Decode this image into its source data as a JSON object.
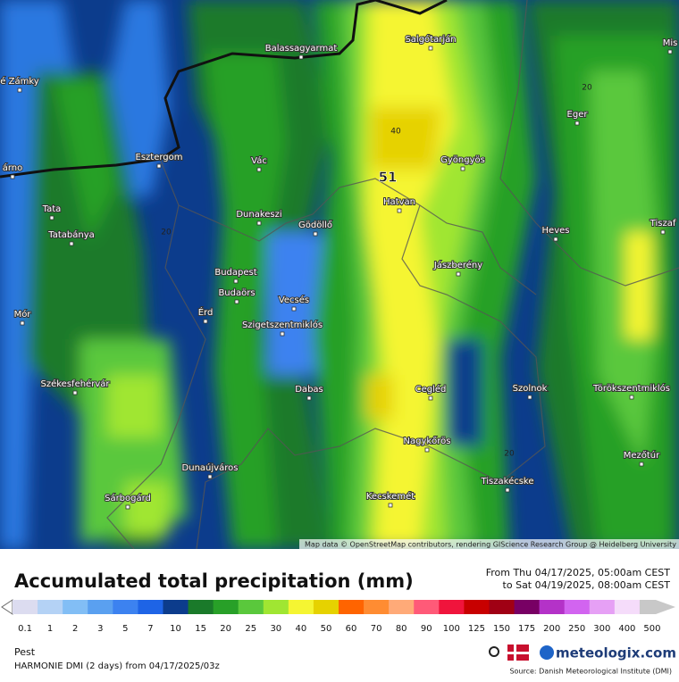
{
  "map": {
    "places": [
      "Balassagyarmat",
      "Salgótarján",
      "é Zámky",
      "Mis",
      "Eger",
      "Esztergom",
      "Vác",
      "Gyöngyös",
      "árno",
      "Tata",
      "Dunakeszi",
      "Gödöllő",
      "Hatvan",
      "Heves",
      "Tiszaf",
      "Tatabánya",
      "Jászberény",
      "Budapest",
      "Budaörs",
      "Vecsés",
      "Mór",
      "Érd",
      "Szigetszentmiklós",
      "Székesfehérvár",
      "Dabas",
      "Cegléd",
      "Szolnok",
      "Törökszentmiklós",
      "Nagykőrös",
      "Dunaújváros",
      "Mezőtúr",
      "Sárbogárd",
      "Tiszakécske",
      "Kecskemét"
    ],
    "contour_labels": [
      20,
      40,
      20,
      20
    ],
    "max_value": 51,
    "attribution": "Map data © OpenStreetMap contributors, rendering GIScience Research Group @ Heidelberg University"
  },
  "legend": {
    "title": "Accumulated total precipitation (mm)",
    "period_from": "From Thu 04/17/2025, 05:00am CEST",
    "period_to": "to Sat 04/19/2025, 08:00am CEST",
    "levels": [
      {
        "value": 0.1,
        "color": "#dcdcf0"
      },
      {
        "value": 1,
        "color": "#b4d2f5"
      },
      {
        "value": 2,
        "color": "#82bef5"
      },
      {
        "value": 3,
        "color": "#5aa0f0"
      },
      {
        "value": 5,
        "color": "#3c82f0"
      },
      {
        "value": 7,
        "color": "#1e64e6"
      },
      {
        "value": 10,
        "color": "#0c3c8c"
      },
      {
        "value": 15,
        "color": "#1a7a2a"
      },
      {
        "value": 20,
        "color": "#28a028"
      },
      {
        "value": 25,
        "color": "#5ac83c"
      },
      {
        "value": 30,
        "color": "#a0e632"
      },
      {
        "value": 40,
        "color": "#f5f532"
      },
      {
        "value": 50,
        "color": "#e6d200"
      },
      {
        "value": 60,
        "color": "#ff6400"
      },
      {
        "value": 70,
        "color": "#ff8c32"
      },
      {
        "value": 80,
        "color": "#ffaa78"
      },
      {
        "value": 90,
        "color": "#ff5a78"
      },
      {
        "value": 100,
        "color": "#f0143c"
      },
      {
        "value": 125,
        "color": "#c80000"
      },
      {
        "value": 150,
        "color": "#a00014"
      },
      {
        "value": 175,
        "color": "#780064"
      },
      {
        "value": 200,
        "color": "#b432c8"
      },
      {
        "value": 250,
        "color": "#d264f0"
      },
      {
        "value": 300,
        "color": "#e6a0f5"
      },
      {
        "value": 400,
        "color": "#f5dcfa"
      },
      {
        "value": 500,
        "color": "#c8c8c8"
      }
    ]
  },
  "footer": {
    "region": "Pest",
    "model": "HARMONIE DMI (2 days) from 04/17/2025/03z",
    "brand": "meteologix.com",
    "source": "Source: Danish Meteorological Institute (DMI)"
  }
}
